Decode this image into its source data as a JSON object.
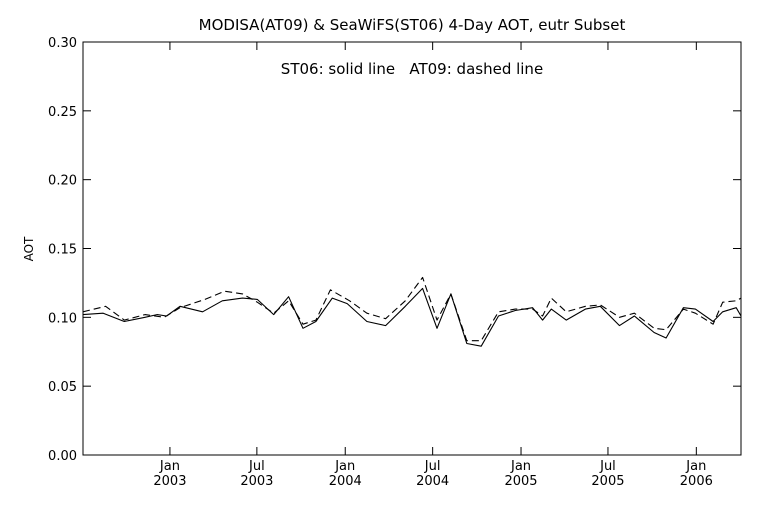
{
  "chart_data": {
    "type": "line",
    "title": "MODISA(AT09) & SeaWiFS(ST06) 4-Day AOT, eutr Subset",
    "annotation": "ST06: solid line   AT09: dashed line",
    "ylabel": "AOT",
    "xlabel": "",
    "ylim": [
      0.0,
      0.3
    ],
    "xlim": [
      "2002-07-04",
      "2006-04-04"
    ],
    "grid": false,
    "yticks": [
      "0.00",
      "0.05",
      "0.10",
      "0.15",
      "0.20",
      "0.25",
      "0.30"
    ],
    "xticks": [
      {
        "date": "2003-01-01",
        "month": "Jan",
        "year": "2003"
      },
      {
        "date": "2003-07-01",
        "month": "Jul",
        "year": "2003"
      },
      {
        "date": "2004-01-01",
        "month": "Jan",
        "year": "2004"
      },
      {
        "date": "2004-07-01",
        "month": "Jul",
        "year": "2004"
      },
      {
        "date": "2005-01-01",
        "month": "Jan",
        "year": "2005"
      },
      {
        "date": "2005-07-01",
        "month": "Jul",
        "year": "2005"
      },
      {
        "date": "2006-01-01",
        "month": "Jan",
        "year": "2006"
      }
    ],
    "series": [
      {
        "name": "ST06",
        "style": "solid",
        "color": "#000000",
        "points": [
          [
            "2002-07-04",
            0.102
          ],
          [
            "2002-08-15",
            0.103
          ],
          [
            "2002-09-28",
            0.097
          ],
          [
            "2002-11-10",
            0.1
          ],
          [
            "2002-12-05",
            0.102
          ],
          [
            "2002-12-25",
            0.101
          ],
          [
            "2003-01-22",
            0.108
          ],
          [
            "2003-03-10",
            0.104
          ],
          [
            "2003-04-20",
            0.112
          ],
          [
            "2003-06-01",
            0.114
          ],
          [
            "2003-07-02",
            0.113
          ],
          [
            "2003-08-05",
            0.102
          ],
          [
            "2003-09-05",
            0.115
          ],
          [
            "2003-10-05",
            0.092
          ],
          [
            "2003-11-01",
            0.097
          ],
          [
            "2003-12-05",
            0.114
          ],
          [
            "2004-01-05",
            0.11
          ],
          [
            "2004-02-15",
            0.097
          ],
          [
            "2004-03-25",
            0.094
          ],
          [
            "2004-05-05",
            0.108
          ],
          [
            "2004-06-10",
            0.121
          ],
          [
            "2004-07-10",
            0.092
          ],
          [
            "2004-08-08",
            0.117
          ],
          [
            "2004-09-10",
            0.081
          ],
          [
            "2004-10-10",
            0.079
          ],
          [
            "2004-11-15",
            0.101
          ],
          [
            "2004-12-20",
            0.105
          ],
          [
            "2005-01-25",
            0.107
          ],
          [
            "2005-02-15",
            0.098
          ],
          [
            "2005-03-05",
            0.106
          ],
          [
            "2005-04-05",
            0.098
          ],
          [
            "2005-05-15",
            0.106
          ],
          [
            "2005-06-15",
            0.108
          ],
          [
            "2005-07-25",
            0.094
          ],
          [
            "2005-08-25",
            0.101
          ],
          [
            "2005-10-05",
            0.089
          ],
          [
            "2005-10-30",
            0.085
          ],
          [
            "2005-12-05",
            0.107
          ],
          [
            "2005-12-30",
            0.106
          ],
          [
            "2006-02-05",
            0.097
          ],
          [
            "2006-02-25",
            0.104
          ],
          [
            "2006-03-25",
            0.107
          ],
          [
            "2006-04-04",
            0.101
          ]
        ]
      },
      {
        "name": "AT09",
        "style": "dashed",
        "color": "#000000",
        "points": [
          [
            "2002-07-04",
            0.104
          ],
          [
            "2002-08-20",
            0.108
          ],
          [
            "2002-09-28",
            0.098
          ],
          [
            "2002-11-10",
            0.102
          ],
          [
            "2002-12-20",
            0.1
          ],
          [
            "2003-01-22",
            0.107
          ],
          [
            "2003-03-15",
            0.113
          ],
          [
            "2003-04-25",
            0.119
          ],
          [
            "2003-06-01",
            0.117
          ],
          [
            "2003-07-02",
            0.111
          ],
          [
            "2003-08-05",
            0.103
          ],
          [
            "2003-09-05",
            0.112
          ],
          [
            "2003-10-05",
            0.095
          ],
          [
            "2003-11-01",
            0.098
          ],
          [
            "2003-12-01",
            0.12
          ],
          [
            "2004-01-10",
            0.112
          ],
          [
            "2004-02-15",
            0.103
          ],
          [
            "2004-03-25",
            0.099
          ],
          [
            "2004-05-05",
            0.112
          ],
          [
            "2004-06-10",
            0.129
          ],
          [
            "2004-07-10",
            0.098
          ],
          [
            "2004-08-08",
            0.117
          ],
          [
            "2004-09-10",
            0.083
          ],
          [
            "2004-10-10",
            0.083
          ],
          [
            "2004-11-15",
            0.104
          ],
          [
            "2004-12-20",
            0.106
          ],
          [
            "2005-01-25",
            0.106
          ],
          [
            "2005-02-15",
            0.101
          ],
          [
            "2005-03-05",
            0.114
          ],
          [
            "2005-04-05",
            0.104
          ],
          [
            "2005-05-15",
            0.108
          ],
          [
            "2005-06-15",
            0.109
          ],
          [
            "2005-07-25",
            0.1
          ],
          [
            "2005-08-25",
            0.103
          ],
          [
            "2005-10-05",
            0.092
          ],
          [
            "2005-10-30",
            0.091
          ],
          [
            "2005-12-05",
            0.106
          ],
          [
            "2005-12-30",
            0.103
          ],
          [
            "2006-02-05",
            0.095
          ],
          [
            "2006-02-25",
            0.111
          ],
          [
            "2006-03-25",
            0.112
          ],
          [
            "2006-04-04",
            0.114
          ]
        ]
      }
    ]
  }
}
